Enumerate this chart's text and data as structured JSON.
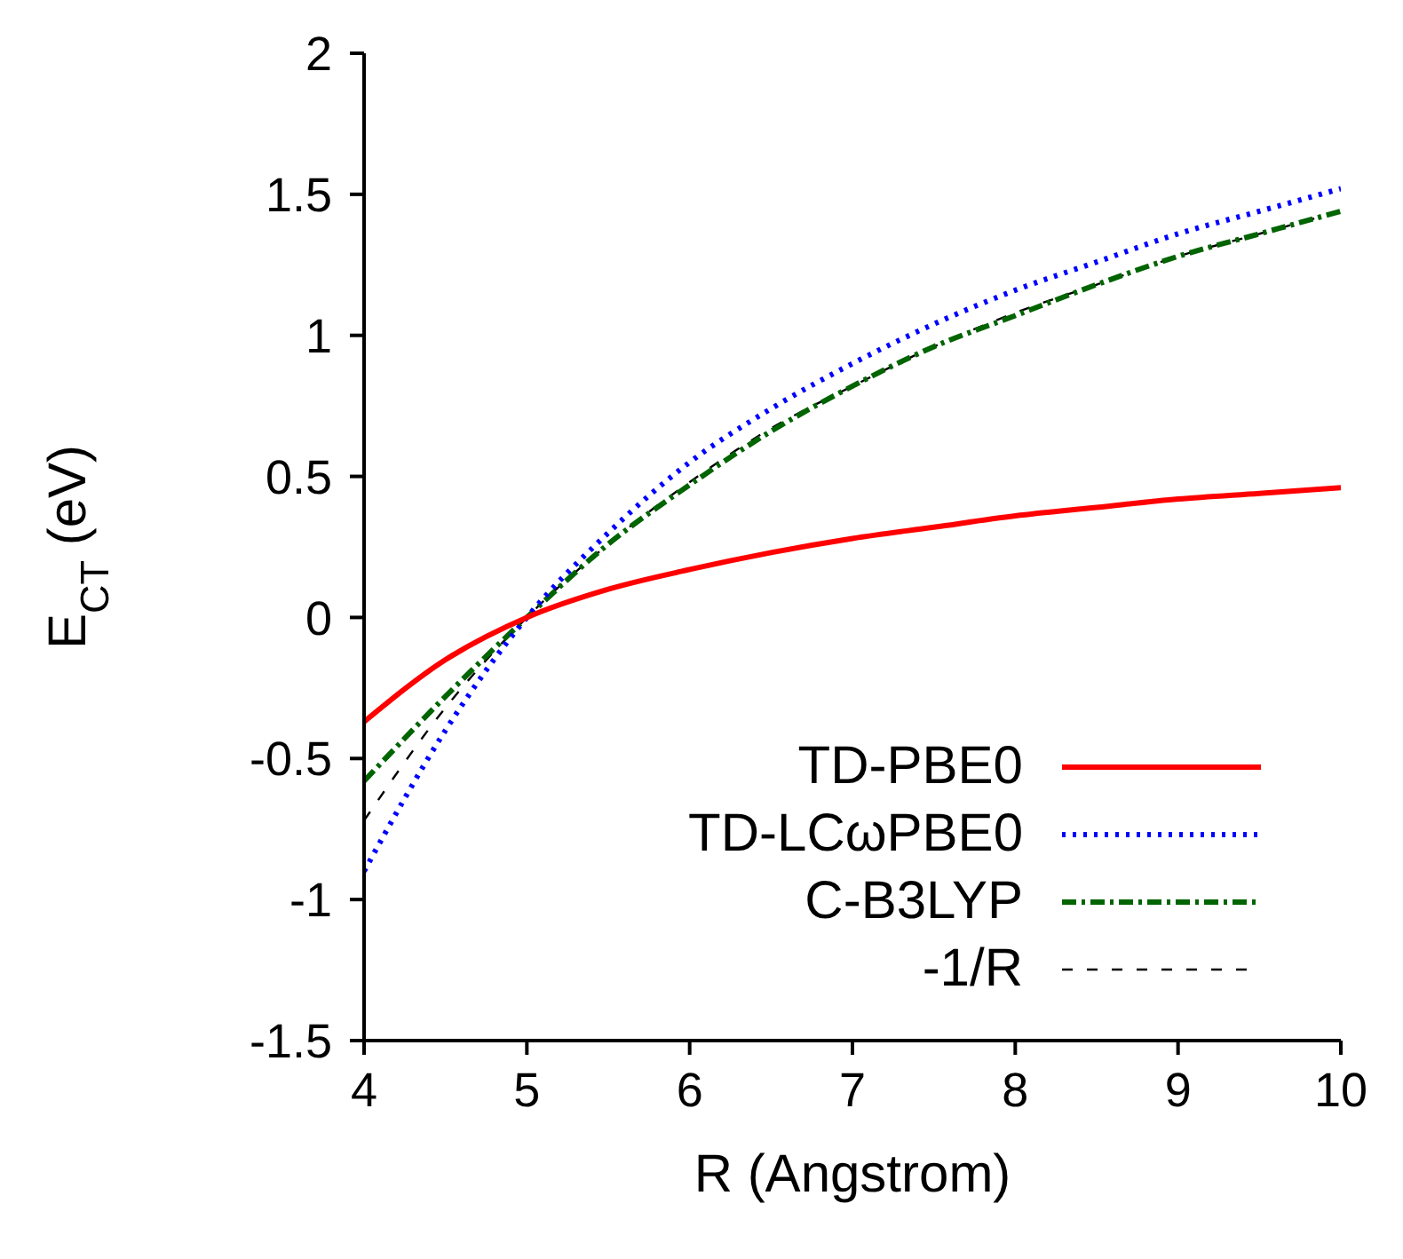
{
  "chart_data": {
    "type": "line",
    "xlabel": "R (Angstrom)",
    "ylabel": "E$_{CT}$ (eV)",
    "x": [
      4,
      4.5,
      5,
      5.5,
      6,
      6.5,
      7,
      7.5,
      8,
      8.5,
      9,
      9.5,
      10
    ],
    "series": [
      {
        "name": "TD-PBE0",
        "color": "#ff0000",
        "line_style": "solid",
        "values": [
          -0.37,
          -0.15,
          0,
          0.1,
          0.17,
          0.23,
          0.28,
          0.32,
          0.36,
          0.39,
          0.42,
          0.44,
          0.46
        ]
      },
      {
        "name": "TD-LCωPBE0",
        "color": "#0000ff",
        "line_style": "dotted",
        "values": [
          -0.9,
          -0.4,
          0,
          0.3,
          0.55,
          0.74,
          0.9,
          1.04,
          1.16,
          1.26,
          1.36,
          1.44,
          1.52
        ]
      },
      {
        "name": "C-B3LYP",
        "color": "#006400",
        "line_style": "dashdot",
        "values": [
          -0.58,
          -0.28,
          0,
          0.26,
          0.47,
          0.66,
          0.82,
          0.96,
          1.07,
          1.18,
          1.28,
          1.36,
          1.44
        ]
      },
      {
        "name": "-1/R",
        "color": "#000000",
        "line_style": "dashed",
        "values": [
          -0.72,
          -0.32,
          0,
          0.26,
          0.48,
          0.67,
          0.82,
          0.96,
          1.08,
          1.18,
          1.28,
          1.36,
          1.44
        ]
      }
    ],
    "xlim": [
      4,
      10
    ],
    "xticks": [
      4,
      5,
      6,
      7,
      8,
      9,
      10
    ],
    "ylim": [
      -1.5,
      2
    ],
    "yticks": [
      -1.5,
      -1,
      -0.5,
      0,
      0.5,
      1,
      1.5,
      2
    ],
    "grid": false,
    "legend": "bottom right",
    "marker": "none"
  }
}
